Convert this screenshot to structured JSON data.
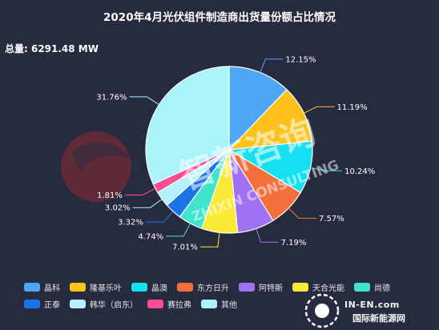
{
  "title": "2020年4月光伏组件制造商出货量份额占比情况",
  "total": "总量: 6291.48 MW",
  "watermark": {
    "zh": "智新咨询",
    "en": "ZHIXIN CONSULTING",
    "logo_text1": "IN-EN.com",
    "logo_text2": "国际新能源网"
  },
  "chart_data": {
    "type": "pie",
    "unit": "%",
    "start_angle_deg": 90,
    "direction": "clockwise",
    "slices": [
      {
        "name": "晶科",
        "value": 12.15,
        "label": "12.15%",
        "color": "#4fa6f4"
      },
      {
        "name": "隆基乐叶",
        "value": 11.19,
        "label": "11.19%",
        "color": "#ffc21c"
      },
      {
        "name": "晶澳",
        "value": 10.24,
        "label": "10.24%",
        "color": "#14e0f0"
      },
      {
        "name": "东方日升",
        "value": 7.57,
        "label": "7.57%",
        "color": "#f56f3d"
      },
      {
        "name": "阿特斯",
        "value": 7.19,
        "label": "7.19%",
        "color": "#a071f2"
      },
      {
        "name": "天合光能",
        "value": 7.01,
        "label": "7.01%",
        "color": "#fbeb37"
      },
      {
        "name": "尚德",
        "value": 4.74,
        "label": "4.74%",
        "color": "#3ee4cc"
      },
      {
        "name": "正泰",
        "value": 3.32,
        "label": "3.32%",
        "color": "#1b73e8"
      },
      {
        "name": "韩华（启东）",
        "value": 3.02,
        "label": "3.02%",
        "color": "#b3f1ff"
      },
      {
        "name": "赛拉弗",
        "value": 1.81,
        "label": "1.81%",
        "color": "#ff4d92"
      },
      {
        "name": "其他",
        "value": 31.76,
        "label": "31.76%",
        "color": "#a9f3fb"
      }
    ]
  }
}
